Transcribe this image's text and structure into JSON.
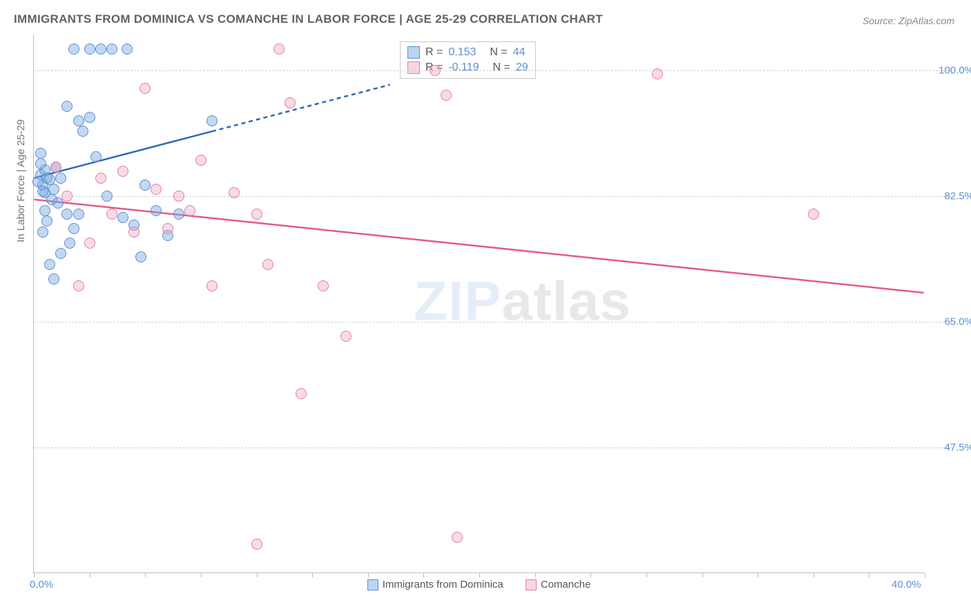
{
  "title": "IMMIGRANTS FROM DOMINICA VS COMANCHE IN LABOR FORCE | AGE 25-29 CORRELATION CHART",
  "source": "Source: ZipAtlas.com",
  "ylabel": "In Labor Force | Age 25-29",
  "watermark_a": "ZIP",
  "watermark_b": "atlas",
  "chart": {
    "type": "scatter",
    "background_color": "#ffffff",
    "grid_color": "#d0d0d0",
    "axis_color": "#bdbdbd",
    "text_color": "#616161",
    "value_color": "#5a8fd6",
    "xlim": [
      0,
      40
    ],
    "ylim": [
      30,
      105
    ],
    "xticks": [
      0,
      40
    ],
    "xtick_labels": [
      "0.0%",
      "40.0%"
    ],
    "xtick_minor_step": 2.5,
    "yticks": [
      47.5,
      65.0,
      82.5,
      100.0
    ],
    "ytick_labels": [
      "47.5%",
      "65.0%",
      "82.5%",
      "100.0%"
    ],
    "series": [
      {
        "name": "Immigrants from Dominica",
        "color_fill": "rgba(122,169,222,0.45)",
        "color_stroke": "#5a8fd6",
        "marker": "circle",
        "marker_size": 16,
        "R": "0.153",
        "N": "44",
        "trend": {
          "x1": 0,
          "y1": 85.0,
          "x2": 8.0,
          "y2": 91.5,
          "x2_dash": 16.0,
          "y2_dash": 98.0,
          "color": "#2d66b8",
          "width": 2.5
        },
        "points": [
          [
            0.3,
            85.5
          ],
          [
            0.4,
            84.0
          ],
          [
            0.5,
            86.2
          ],
          [
            0.3,
            87.0
          ],
          [
            0.6,
            85.0
          ],
          [
            0.5,
            83.0
          ],
          [
            0.2,
            84.5
          ],
          [
            0.7,
            84.8
          ],
          [
            0.4,
            83.2
          ],
          [
            0.8,
            82.0
          ],
          [
            0.5,
            80.5
          ],
          [
            1.0,
            86.5
          ],
          [
            0.3,
            88.5
          ],
          [
            1.2,
            85.0
          ],
          [
            0.9,
            83.5
          ],
          [
            1.1,
            81.5
          ],
          [
            1.5,
            80.0
          ],
          [
            0.6,
            79.0
          ],
          [
            0.4,
            77.5
          ],
          [
            1.8,
            78.0
          ],
          [
            1.6,
            76.0
          ],
          [
            1.2,
            74.5
          ],
          [
            0.7,
            73.0
          ],
          [
            2.0,
            93.0
          ],
          [
            2.5,
            93.5
          ],
          [
            2.2,
            91.5
          ],
          [
            1.5,
            95.0
          ],
          [
            2.8,
            88.0
          ],
          [
            2.0,
            80.0
          ],
          [
            3.0,
            103.0
          ],
          [
            3.5,
            103.0
          ],
          [
            2.5,
            103.0
          ],
          [
            4.2,
            103.0
          ],
          [
            3.3,
            82.5
          ],
          [
            4.0,
            79.5
          ],
          [
            4.5,
            78.5
          ],
          [
            5.0,
            84.0
          ],
          [
            5.5,
            80.5
          ],
          [
            6.0,
            77.0
          ],
          [
            6.5,
            80.0
          ],
          [
            4.8,
            74.0
          ],
          [
            8.0,
            93.0
          ],
          [
            1.8,
            103.0
          ],
          [
            0.9,
            71.0
          ]
        ]
      },
      {
        "name": "Comanche",
        "color_fill": "rgba(235,152,180,0.35)",
        "color_stroke": "#e87ba3",
        "marker": "circle",
        "marker_size": 16,
        "R": "-0.119",
        "N": "29",
        "trend": {
          "x1": 0,
          "y1": 82.0,
          "x2": 40.0,
          "y2": 69.0,
          "color": "#e55a8a",
          "width": 2.5
        },
        "points": [
          [
            1.0,
            86.5
          ],
          [
            1.5,
            82.5
          ],
          [
            2.0,
            70.0
          ],
          [
            2.5,
            76.0
          ],
          [
            3.0,
            85.0
          ],
          [
            3.5,
            80.0
          ],
          [
            4.0,
            86.0
          ],
          [
            4.5,
            77.5
          ],
          [
            5.0,
            97.5
          ],
          [
            5.5,
            83.5
          ],
          [
            6.0,
            78.0
          ],
          [
            6.5,
            82.5
          ],
          [
            7.0,
            80.5
          ],
          [
            7.5,
            87.5
          ],
          [
            8.0,
            70.0
          ],
          [
            9.0,
            83.0
          ],
          [
            10.0,
            80.0
          ],
          [
            10.5,
            73.0
          ],
          [
            11.0,
            103.0
          ],
          [
            11.5,
            95.5
          ],
          [
            12.0,
            55.0
          ],
          [
            13.0,
            70.0
          ],
          [
            14.0,
            63.0
          ],
          [
            18.0,
            100.0
          ],
          [
            18.5,
            96.5
          ],
          [
            19.0,
            35.0
          ],
          [
            28.0,
            99.5
          ],
          [
            35.0,
            80.0
          ],
          [
            10.0,
            34.0
          ]
        ]
      }
    ]
  },
  "stats_labels": {
    "R": "R =",
    "N": "N ="
  },
  "legend": [
    {
      "label": "Immigrants from Dominica",
      "class": "blue"
    },
    {
      "label": "Comanche",
      "class": "pink"
    }
  ]
}
